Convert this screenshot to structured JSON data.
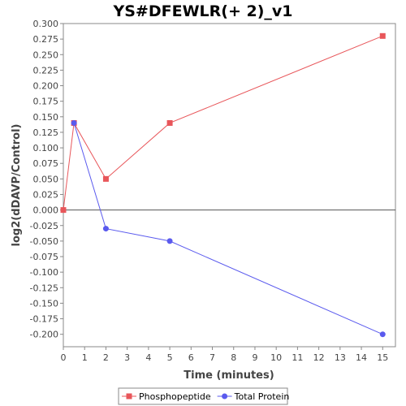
{
  "chart_data": {
    "type": "line",
    "title": "YS#DFEWLR(+ 2)_v1",
    "xlabel": "Time (minutes)",
    "ylabel": "log2(dDAVP/Control)",
    "xlim": [
      0,
      15.6
    ],
    "ylim": [
      -0.22,
      0.3
    ],
    "x_ticks": [
      0,
      1,
      2,
      3,
      4,
      5,
      6,
      7,
      8,
      9,
      10,
      11,
      12,
      13,
      14,
      15
    ],
    "y_ticks": [
      0.3,
      0.275,
      0.25,
      0.225,
      0.2,
      0.175,
      0.15,
      0.125,
      0.1,
      0.075,
      0.05,
      0.025,
      0.0,
      -0.025,
      -0.05,
      -0.075,
      -0.1,
      -0.125,
      -0.15,
      -0.175,
      -0.2
    ],
    "y_tick_labels": [
      "0.300",
      "0.275",
      "0.250",
      "0.225",
      "0.200",
      "0.175",
      "0.150",
      "0.125",
      "0.100",
      "0.075",
      "0.050",
      "0.025",
      "0.000",
      "-0.025",
      "-0.050",
      "-0.075",
      "-0.100",
      "-0.125",
      "-0.150",
      "-0.175",
      "-0.200"
    ],
    "zero_line": true,
    "grid": false,
    "legend_position": "bottom",
    "series": [
      {
        "name": "Phosphopeptide",
        "color": "#e8565a",
        "marker": "square",
        "x": [
          0,
          0.5,
          2,
          5,
          15
        ],
        "y": [
          0.0,
          0.14,
          0.05,
          0.14,
          0.28
        ]
      },
      {
        "name": "Total Protein",
        "color": "#5a5aee",
        "marker": "circle",
        "x": [
          0.5,
          2,
          5,
          15
        ],
        "y": [
          0.14,
          -0.03,
          -0.05,
          -0.2
        ]
      }
    ]
  }
}
